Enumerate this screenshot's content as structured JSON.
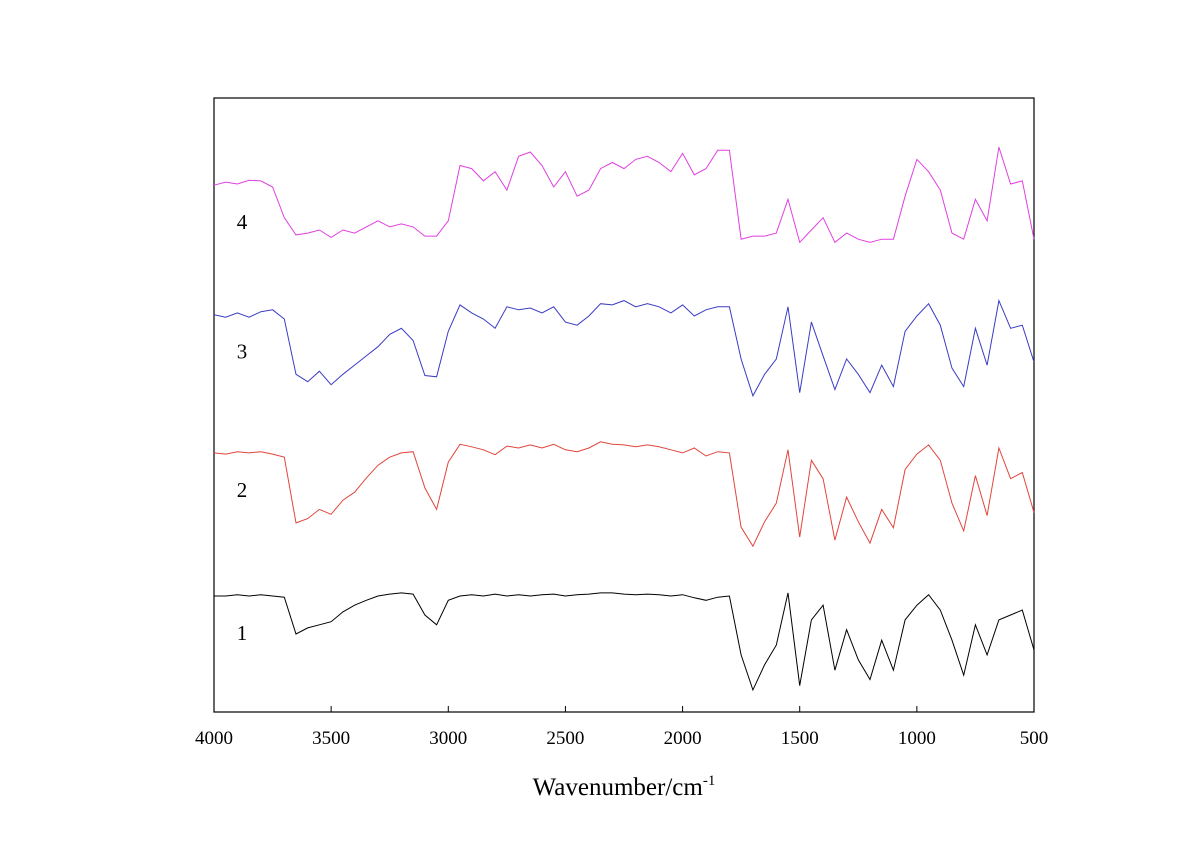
{
  "chart_data": {
    "type": "line",
    "x": [
      4000,
      3950,
      3900,
      3850,
      3800,
      3750,
      3700,
      3650,
      3600,
      3550,
      3500,
      3450,
      3400,
      3350,
      3300,
      3250,
      3200,
      3150,
      3100,
      3050,
      3000,
      2950,
      2900,
      2850,
      2800,
      2750,
      2700,
      2650,
      2600,
      2550,
      2500,
      2450,
      2400,
      2350,
      2300,
      2250,
      2200,
      2150,
      2100,
      2050,
      2000,
      1950,
      1900,
      1850,
      1800,
      1750,
      1700,
      1650,
      1600,
      1550,
      1500,
      1450,
      1400,
      1350,
      1300,
      1250,
      1200,
      1150,
      1100,
      1050,
      1000,
      950,
      900,
      850,
      800,
      750,
      700,
      650,
      600,
      550,
      500
    ],
    "xlim": [
      4000,
      500
    ],
    "xticks": [
      4000,
      3500,
      3000,
      2500,
      2000,
      1500,
      1000,
      500
    ],
    "ylim": [
      0,
      100
    ],
    "xlabel": {
      "text": "Wavenumber/cm",
      "superscript": "-1"
    },
    "series": [
      {
        "name": "1",
        "color": "#000000",
        "values": [
          18.9,
          18.9,
          19.1,
          18.9,
          19.1,
          18.9,
          18.7,
          12.7,
          13.7,
          14.2,
          14.7,
          16.3,
          17.4,
          18.2,
          18.9,
          19.2,
          19.4,
          19.2,
          15.8,
          14.2,
          18.2,
          18.9,
          19.1,
          18.9,
          19.2,
          18.9,
          19.1,
          18.9,
          19.1,
          19.2,
          18.9,
          19.1,
          19.2,
          19.4,
          19.4,
          19.2,
          19.1,
          19.2,
          19.1,
          18.9,
          19.1,
          18.6,
          18.2,
          18.7,
          18.9,
          9.3,
          3.6,
          7.7,
          10.9,
          19.4,
          4.3,
          15.0,
          17.4,
          6.8,
          13.4,
          8.5,
          5.3,
          11.7,
          6.8,
          15.0,
          17.4,
          19.1,
          16.6,
          11.7,
          6.0,
          14.2,
          9.3,
          15.0,
          15.8,
          16.6,
          10.1
        ]
      },
      {
        "name": "2",
        "color": "#e0453c",
        "values": [
          42.2,
          42.0,
          42.4,
          42.2,
          42.4,
          42.0,
          41.5,
          30.8,
          31.5,
          33.0,
          32.2,
          34.5,
          35.8,
          38.1,
          40.2,
          41.5,
          42.2,
          42.4,
          36.5,
          33.0,
          40.7,
          43.6,
          43.2,
          42.7,
          41.9,
          43.3,
          43.0,
          43.5,
          43.0,
          43.6,
          42.7,
          42.4,
          43.0,
          44.0,
          43.6,
          43.5,
          43.2,
          43.5,
          43.2,
          42.7,
          42.2,
          43.0,
          41.7,
          42.4,
          42.2,
          30.1,
          27.0,
          31.0,
          34.0,
          42.7,
          28.5,
          41.0,
          38.0,
          28.0,
          35.0,
          31.0,
          27.5,
          33.0,
          30.0,
          39.5,
          42.0,
          43.5,
          41.0,
          34.0,
          29.5,
          38.5,
          32.0,
          43.0,
          38.0,
          39.0,
          32.5
        ]
      },
      {
        "name": "3",
        "color": "#3b3bc4",
        "values": [
          64.7,
          64.3,
          65.0,
          64.3,
          65.2,
          65.5,
          64.0,
          55.0,
          53.8,
          55.5,
          53.3,
          55.0,
          56.5,
          58.0,
          59.5,
          61.5,
          62.5,
          60.5,
          54.8,
          54.6,
          62.0,
          66.3,
          65.0,
          64.0,
          62.5,
          66.0,
          65.5,
          65.8,
          65.0,
          66.0,
          63.5,
          63.0,
          64.5,
          66.5,
          66.3,
          67.0,
          66.0,
          66.5,
          66.0,
          65.0,
          66.3,
          64.5,
          65.5,
          66.0,
          66.0,
          57.5,
          51.5,
          55.0,
          57.5,
          66.0,
          52.0,
          63.5,
          58.0,
          52.5,
          57.5,
          55.0,
          52.0,
          56.5,
          53.0,
          62.0,
          64.5,
          66.5,
          63.0,
          56.0,
          53.0,
          62.5,
          56.5,
          67.0,
          62.5,
          63.0,
          57.0
        ]
      },
      {
        "name": "4",
        "color": "#e040e0",
        "values": [
          85.8,
          86.3,
          86.0,
          86.6,
          86.5,
          85.5,
          80.5,
          77.7,
          78.0,
          78.5,
          77.3,
          78.5,
          78.0,
          79.0,
          80.0,
          79.0,
          79.5,
          79.0,
          77.5,
          77.5,
          80.0,
          89.0,
          88.5,
          86.5,
          88.0,
          85.0,
          90.5,
          91.2,
          89.0,
          85.5,
          88.0,
          84.0,
          85.0,
          88.5,
          89.5,
          88.5,
          90.0,
          90.5,
          89.5,
          88.0,
          91.0,
          87.5,
          88.5,
          91.5,
          91.5,
          77.0,
          77.5,
          77.5,
          78.0,
          83.5,
          76.5,
          78.5,
          80.5,
          76.5,
          78.0,
          77.0,
          76.5,
          77.0,
          77.0,
          84.0,
          90.0,
          88.0,
          85.0,
          78.0,
          77.0,
          83.5,
          80.0,
          92.0,
          86.0,
          86.5,
          77.0
        ]
      }
    ]
  }
}
